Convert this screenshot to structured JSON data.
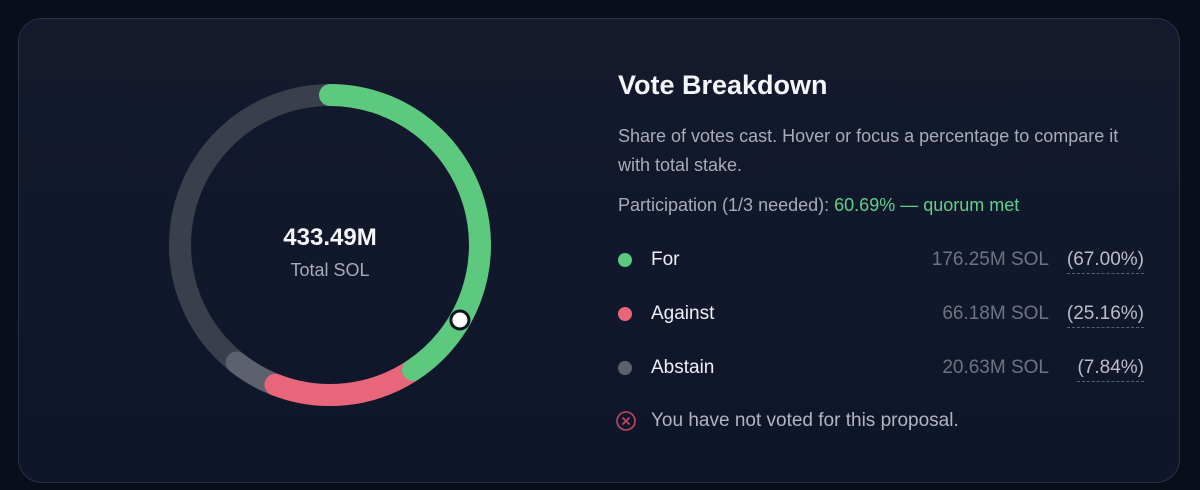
{
  "card": {
    "title": "Vote Breakdown",
    "description": "Share of votes cast. Hover or focus a percentage to compare it with total stake.",
    "participation_label": "Participation (1/3 needed):",
    "participation_status": "60.69% — quorum met",
    "total": 433.49,
    "total_label": "433.49M",
    "total_caption": "Total SOL",
    "quorum_threshold": 144.5,
    "track_color": "#3a3f4c",
    "rows": [
      {
        "label": "For",
        "color": "#5cc97f",
        "amount": 176.25,
        "amount_label": "176.25M SOL",
        "percent": 67.0,
        "percent_label": "(67.00%)"
      },
      {
        "label": "Against",
        "color": "#e8667a",
        "amount": 66.18,
        "amount_label": "66.18M SOL",
        "percent": 25.16,
        "percent_label": "(25.16%)"
      },
      {
        "label": "Abstain",
        "color": "#5c616d",
        "amount": 20.63,
        "amount_label": "20.63M SOL",
        "percent": 7.84,
        "percent_label": "(7.84%)"
      }
    ],
    "note": "You have not voted for this proposal."
  }
}
